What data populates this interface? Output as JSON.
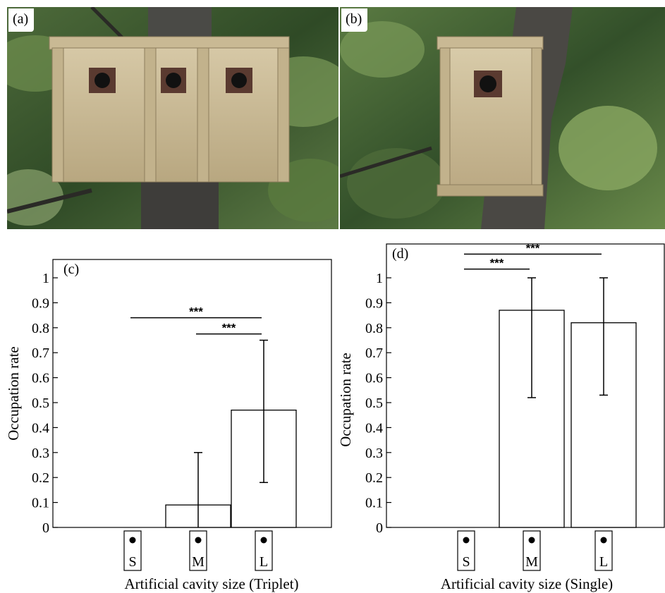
{
  "panels": {
    "a": {
      "label": "(a)"
    },
    "b": {
      "label": "(b)"
    }
  },
  "chart_data": [
    {
      "panel": "(c)",
      "type": "bar",
      "categories": [
        "S",
        "M",
        "L"
      ],
      "values": [
        0,
        0.09,
        0.47
      ],
      "error_low": [
        null,
        0.0,
        0.18
      ],
      "error_high": [
        null,
        0.3,
        0.75
      ],
      "xlabel": "Artificial cavity size (Triplet)",
      "ylabel": "Occupation rate",
      "ylim": [
        0,
        1.05
      ],
      "yticks": [
        "0",
        "0.1",
        "0.2",
        "0.3",
        "0.4",
        "0.5",
        "0.6",
        "0.7",
        "0.8",
        "0.9",
        "1"
      ],
      "significance": [
        {
          "from": "S",
          "to": "L",
          "label": "***",
          "y": 0.84
        },
        {
          "from": "M",
          "to": "L",
          "label": "***",
          "y": 0.775
        }
      ],
      "grid": false
    },
    {
      "panel": "(d)",
      "type": "bar",
      "categories": [
        "S",
        "M",
        "L"
      ],
      "values": [
        0,
        0.87,
        0.82
      ],
      "error_low": [
        null,
        0.52,
        0.53
      ],
      "error_high": [
        null,
        1.0,
        1.0
      ],
      "xlabel": "Artificial cavity size (Single)",
      "ylabel": "Occupation rate",
      "ylim": [
        0,
        1.05
      ],
      "yticks": [
        "0",
        "0.1",
        "0.2",
        "0.3",
        "0.4",
        "0.5",
        "0.6",
        "0.7",
        "0.8",
        "0.9",
        "1"
      ],
      "significance": [
        {
          "from": "S",
          "to": "L",
          "label": "***",
          "y": 1.095
        },
        {
          "from": "S",
          "to": "M",
          "label": "***",
          "y": 1.035
        }
      ],
      "grid": false
    }
  ]
}
